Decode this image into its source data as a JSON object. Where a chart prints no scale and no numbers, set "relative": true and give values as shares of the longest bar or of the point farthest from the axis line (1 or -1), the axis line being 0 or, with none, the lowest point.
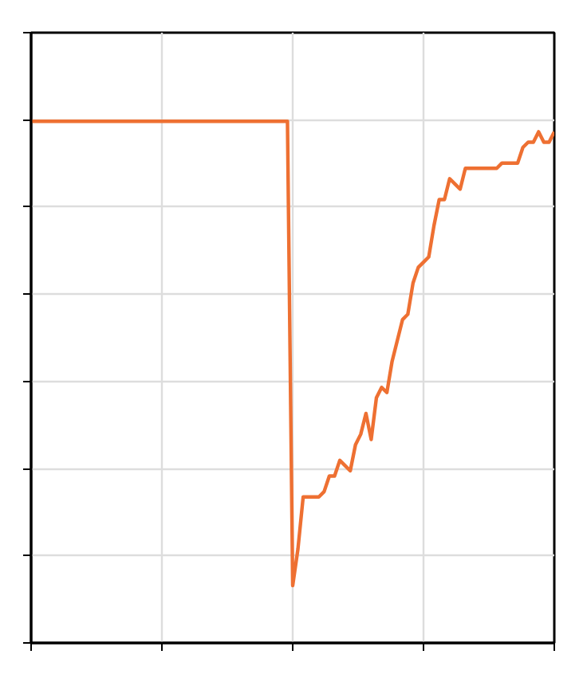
{
  "chart_data": {
    "type": "line",
    "relative": true,
    "grid": true,
    "marker": "none",
    "line_style": "solid",
    "categories": [
      null,
      null,
      null,
      null,
      null,
      null,
      null,
      null,
      null,
      null,
      null,
      null,
      null,
      null,
      null,
      null,
      null,
      null,
      null,
      null,
      null,
      null,
      null,
      null,
      null,
      null,
      null,
      null,
      null,
      null,
      null,
      null,
      null,
      null,
      null,
      null,
      null,
      null,
      null,
      null,
      null,
      null,
      null,
      null,
      null,
      null,
      null,
      null,
      null,
      null,
      null,
      null,
      null,
      null,
      null,
      null,
      null,
      null,
      null,
      null,
      null,
      null,
      null,
      null,
      null,
      null,
      null,
      null,
      null,
      null,
      null,
      null,
      null,
      null,
      null,
      null,
      null,
      null,
      null,
      null,
      null,
      null,
      null,
      null,
      null,
      null,
      null,
      null,
      null,
      null,
      null,
      null,
      null,
      null,
      null,
      null,
      null,
      null,
      null,
      null,
      null
    ],
    "series": [
      {
        "color": "#ee7032",
        "values": [
          1,
          1,
          1,
          1,
          1,
          1,
          1,
          1,
          1,
          1,
          1,
          1,
          1,
          1,
          1,
          1,
          1,
          1,
          1,
          1,
          1,
          1,
          1,
          1,
          1,
          1,
          1,
          1,
          1,
          1,
          1,
          1,
          1,
          1,
          1,
          1,
          1,
          1,
          1,
          1,
          1,
          1,
          1,
          1,
          1,
          1,
          1,
          1,
          1,
          1,
          0.11,
          0.18,
          0.28,
          0.28,
          0.28,
          0.28,
          0.29,
          0.32,
          0.32,
          0.35,
          0.34,
          0.33,
          0.38,
          0.4,
          0.44,
          0.39,
          0.47,
          0.49,
          0.48,
          0.54,
          0.58,
          0.62,
          0.63,
          0.69,
          0.72,
          0.73,
          0.74,
          0.8,
          0.85,
          0.85,
          0.89,
          0.88,
          0.87,
          0.91,
          0.91,
          0.91,
          0.91,
          0.91,
          0.91,
          0.91,
          0.92,
          0.92,
          0.92,
          0.92,
          0.95,
          0.96,
          0.96,
          0.98,
          0.96,
          0.96,
          0.98
        ]
      }
    ]
  }
}
